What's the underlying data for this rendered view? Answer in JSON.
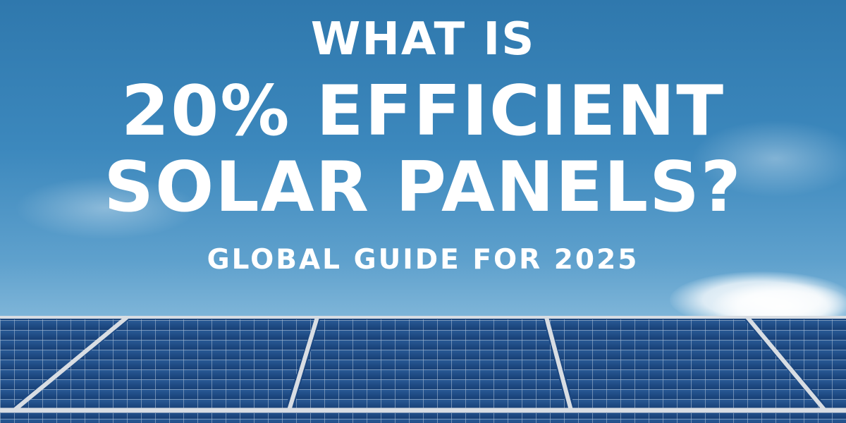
{
  "headline": {
    "line1": "WHAT IS",
    "line2": "20% EFFICIENT",
    "line3": "SOLAR PANELS?"
  },
  "subtitle": "GLOBAL GUIDE FOR 2025",
  "colors": {
    "sky_top": "#2f78ad",
    "sky_bottom": "#9cc6e3",
    "panel_cell": "#1f4f8c",
    "panel_frame": "#d8dde3",
    "text": "#ffffff"
  }
}
